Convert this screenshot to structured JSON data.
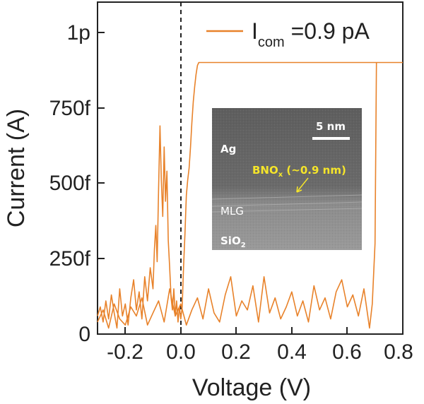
{
  "chart_data": {
    "type": "line",
    "xlabel": "Voltage (V)",
    "ylabel": "Current (A)",
    "xlim": [
      -0.3,
      0.8
    ],
    "ylim": [
      0,
      1.1e-12
    ],
    "x_ticks": [
      -0.2,
      0.0,
      0.2,
      0.4,
      0.6,
      0.8
    ],
    "x_tick_labels": [
      "-0.2",
      "0.0",
      "0.2",
      "0.4",
      "0.6",
      "0.8"
    ],
    "y_ticks": [
      0,
      2.5e-13,
      5e-13,
      7.5e-13,
      1e-12
    ],
    "y_tick_labels": [
      "0",
      "250f",
      "500f",
      "750f",
      "1p"
    ],
    "reference_line": {
      "x": 0.0,
      "style": "dashed"
    },
    "legend": {
      "placement": "top-right",
      "entries": [
        {
          "main": "I",
          "subscript": "com",
          "rest": " =0.9 pA"
        }
      ]
    },
    "series": [
      {
        "color": "#e8822a",
        "x": [
          -0.3,
          -0.29,
          -0.28,
          -0.27,
          -0.26,
          -0.25,
          -0.24,
          -0.23,
          -0.22,
          -0.21,
          -0.2,
          -0.19,
          -0.18,
          -0.17,
          -0.16,
          -0.15,
          -0.14,
          -0.13,
          -0.12,
          -0.11,
          -0.1,
          -0.095,
          -0.09,
          -0.085,
          -0.08,
          -0.075,
          -0.07,
          -0.065,
          -0.06,
          -0.055,
          -0.05,
          -0.045,
          -0.04,
          -0.035,
          -0.03,
          -0.025,
          -0.02,
          -0.015,
          -0.01,
          -0.005,
          0.0,
          0.005,
          0.01,
          0.015,
          0.02,
          0.025,
          0.03,
          0.035,
          0.04,
          0.045,
          0.05,
          0.055,
          0.06,
          0.065,
          0.07,
          0.3,
          0.5,
          0.7,
          0.8
        ],
        "y": [
          6e-14,
          9e-14,
          4e-14,
          1.1e-13,
          5e-14,
          1.3e-13,
          7e-14,
          2e-14,
          1.5e-13,
          6e-14,
          1e-13,
          3e-14,
          1.2e-13,
          1.8e-13,
          8e-14,
          1.4e-13,
          5e-14,
          1.9e-13,
          1.1e-13,
          2.2e-13,
          1.5e-13,
          2.8e-13,
          3.6e-13,
          2.4e-13,
          4.8e-13,
          6.9e-13,
          5.1e-13,
          3.9e-13,
          6.2e-13,
          4.4e-13,
          5.4e-13,
          3.1e-13,
          2.2e-13,
          1.2e-13,
          8e-14,
          1.5e-13,
          6e-14,
          1.1e-13,
          4e-14,
          9e-14,
          5e-14,
          9e-14,
          2.2e-13,
          3.3e-13,
          4.6e-13,
          5.1e-13,
          5.5e-13,
          6.2e-13,
          7e-13,
          7.7e-13,
          8.2e-13,
          8.6e-13,
          8.9e-13,
          9e-13,
          9e-13,
          9e-13,
          9e-13,
          9e-13,
          9e-13
        ]
      },
      {
        "color": "#e8822a",
        "x": [
          -0.3,
          -0.28,
          -0.26,
          -0.24,
          -0.22,
          -0.2,
          -0.18,
          -0.16,
          -0.14,
          -0.12,
          -0.1,
          -0.08,
          -0.06,
          -0.04,
          -0.02,
          0.0,
          0.02,
          0.04,
          0.06,
          0.08,
          0.1,
          0.12,
          0.14,
          0.16,
          0.18,
          0.2,
          0.22,
          0.24,
          0.26,
          0.28,
          0.3,
          0.32,
          0.34,
          0.36,
          0.38,
          0.4,
          0.42,
          0.44,
          0.46,
          0.48,
          0.5,
          0.52,
          0.54,
          0.56,
          0.58,
          0.6,
          0.62,
          0.64,
          0.66,
          0.68,
          0.69,
          0.7,
          0.705
        ],
        "y": [
          4e-14,
          8e-14,
          2e-14,
          1e-13,
          5e-14,
          3e-14,
          9e-14,
          6e-14,
          1.2e-13,
          3e-14,
          7e-14,
          1.1e-13,
          4e-14,
          1.5e-13,
          6e-14,
          1e-13,
          3e-14,
          8e-14,
          1.2e-13,
          5e-14,
          1.5e-13,
          7e-14,
          4e-14,
          1.3e-13,
          1.9e-13,
          6e-14,
          1.1e-13,
          8e-14,
          1.6e-13,
          4e-14,
          1.9e-13,
          7e-14,
          1.2e-13,
          5e-14,
          9e-14,
          1.4e-13,
          6e-14,
          1.1e-13,
          4e-14,
          1.6e-13,
          8e-14,
          1.2e-13,
          5e-14,
          1.4e-13,
          1.8e-13,
          9e-14,
          1.3e-13,
          6e-14,
          1.5e-13,
          2e-14,
          1e-13,
          3e-13,
          9e-13
        ]
      }
    ]
  },
  "inset": {
    "scale_bar_label": "5 nm",
    "labels": {
      "ag": "Ag",
      "bno_main": "BNO",
      "bno_sub": "x",
      "bno_rest": " (~0.9 nm)",
      "mlg": "MLG",
      "sio_main": "SiO",
      "sio_sub": "2"
    },
    "colors": {
      "highlight": "#f5e52a",
      "text": "#ffffff"
    }
  }
}
